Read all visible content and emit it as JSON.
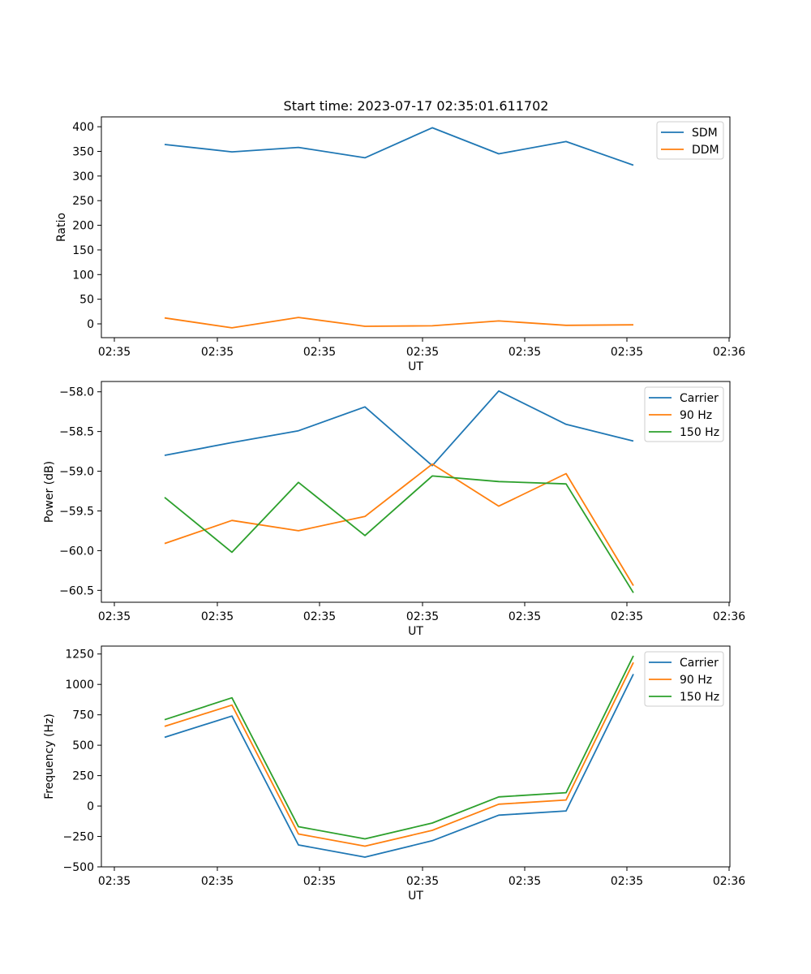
{
  "figure": {
    "title": "Start time: 2023-07-17 02:35:01.611702"
  },
  "chart_data": [
    {
      "type": "line",
      "title": "Start time: 2023-07-17 02:35:01.611702",
      "xlabel": "UT",
      "ylabel": "Ratio",
      "x_tick_labels": [
        "02:35",
        "02:35",
        "02:35",
        "02:35",
        "02:35",
        "02:35",
        "02:35"
      ],
      "xlim": [
        0,
        6.1
      ],
      "x": [
        0.5,
        1.15,
        1.8,
        2.45,
        3.1,
        3.75,
        4.4,
        5.05
      ],
      "x_tick_positions": [
        0.3,
        1.3,
        2.3,
        3.3,
        4.3,
        5.3,
        6.3
      ],
      "x_tick_labels_full": [
        "02:35",
        "02:35",
        "02:35",
        "02:35",
        "02:35",
        "02:35",
        "02:35",
        "02:35",
        "02:36"
      ],
      "x_ticks": [
        0,
        1,
        2,
        3,
        4,
        5,
        6,
        7,
        8
      ],
      "ylim": [
        -28,
        420
      ],
      "y_ticks": [
        0,
        50,
        100,
        150,
        200,
        250,
        300,
        350,
        400
      ],
      "legend": "top-right",
      "series": [
        {
          "name": "SDM",
          "color": "#1f77b4",
          "values": [
            364,
            349,
            358,
            337,
            398,
            345,
            370,
            322
          ]
        },
        {
          "name": "DDM",
          "color": "#ff7f0e",
          "values": [
            12,
            -8,
            13,
            -5,
            -4,
            6,
            -3,
            -2
          ]
        }
      ]
    },
    {
      "type": "line",
      "xlabel": "UT",
      "ylabel": "Power (dB)",
      "x_tick_labels_full": [
        "02:35",
        "02:35",
        "02:35",
        "02:35",
        "02:35",
        "02:35",
        "02:35",
        "02:35",
        "02:36"
      ],
      "x_ticks": [
        0,
        1,
        2,
        3,
        4,
        5,
        6,
        7,
        8
      ],
      "ylim": [
        -60.65,
        -57.87
      ],
      "y_ticks": [
        -60.5,
        -60.0,
        -59.5,
        -59.0,
        -58.5,
        -58.0
      ],
      "y_tick_labels": [
        "−60.5",
        "−60.0",
        "−59.5",
        "−59.0",
        "−58.5",
        "−58.0"
      ],
      "legend": "top-right",
      "series": [
        {
          "name": "Carrier",
          "color": "#1f77b4",
          "values": [
            -58.8,
            -58.64,
            -58.49,
            -58.19,
            -58.93,
            -57.99,
            -58.41,
            -58.62
          ]
        },
        {
          "name": "90 Hz",
          "color": "#ff7f0e",
          "values": [
            -59.91,
            -59.62,
            -59.75,
            -59.57,
            -58.91,
            -59.44,
            -59.03,
            -60.44
          ]
        },
        {
          "name": "150 Hz",
          "color": "#2ca02c",
          "values": [
            -59.33,
            -60.02,
            -59.14,
            -59.81,
            -59.06,
            -59.13,
            -59.16,
            -60.53
          ]
        }
      ]
    },
    {
      "type": "line",
      "xlabel": "UT",
      "ylabel": "Frequency (Hz)",
      "x_tick_labels_full": [
        "02:35",
        "02:35",
        "02:35",
        "02:35",
        "02:35",
        "02:35",
        "02:35",
        "02:35",
        "02:36"
      ],
      "x_ticks": [
        0,
        1,
        2,
        3,
        4,
        5,
        6,
        7,
        8
      ],
      "ylim": [
        -500,
        1315
      ],
      "y_ticks": [
        -500,
        -250,
        0,
        250,
        500,
        750,
        1000,
        1250
      ],
      "y_tick_labels": [
        "−500",
        "−250",
        "0",
        "250",
        "500",
        "750",
        "1000",
        "1250"
      ],
      "legend": "top-right",
      "series": [
        {
          "name": "Carrier",
          "color": "#1f77b4",
          "values": [
            565,
            740,
            -320,
            -420,
            -285,
            -75,
            -40,
            1085
          ]
        },
        {
          "name": "90 Hz",
          "color": "#ff7f0e",
          "values": [
            655,
            830,
            -230,
            -330,
            -200,
            15,
            50,
            1180
          ]
        },
        {
          "name": "150 Hz",
          "color": "#2ca02c",
          "values": [
            710,
            890,
            -170,
            -270,
            -140,
            75,
            110,
            1235
          ]
        }
      ]
    }
  ],
  "x_data_positions": [
    0.5,
    1.15,
    1.8,
    2.45,
    3.1,
    3.75,
    4.4,
    5.05
  ]
}
